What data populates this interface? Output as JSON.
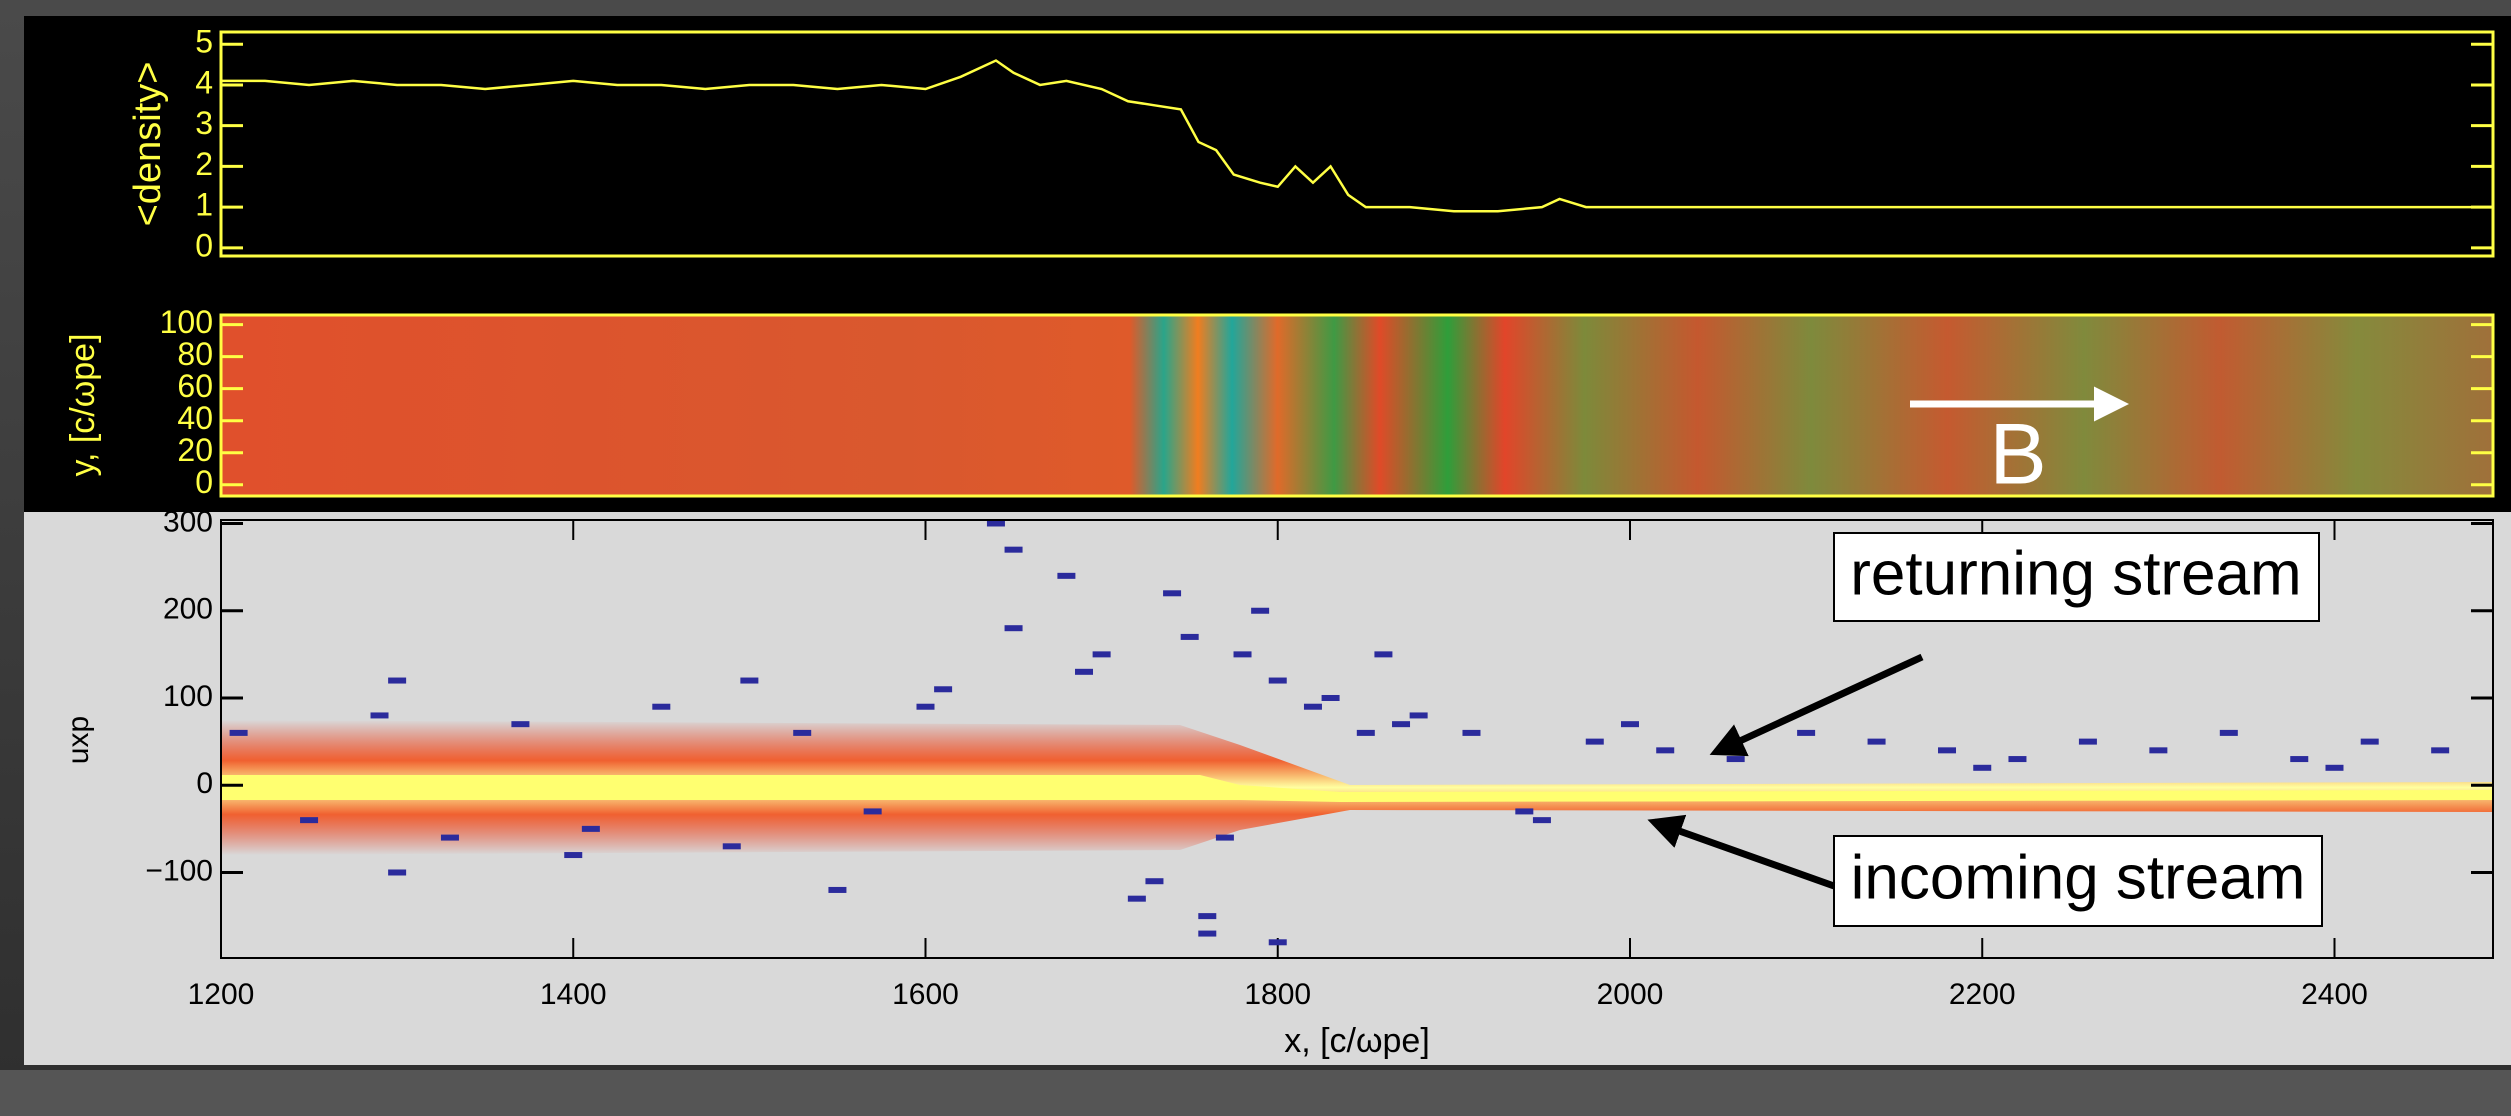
{
  "chart_data": [
    {
      "type": "line",
      "ylabel": "<density>",
      "color": "#ffff44",
      "xlim": [
        1200,
        2490
      ],
      "ylim": [
        -0.2,
        5.3
      ],
      "yticks": [
        0,
        1,
        2,
        3,
        4,
        5
      ],
      "x": [
        1200,
        1225,
        1250,
        1275,
        1300,
        1325,
        1350,
        1375,
        1400,
        1425,
        1450,
        1475,
        1500,
        1525,
        1550,
        1575,
        1600,
        1620,
        1640,
        1650,
        1665,
        1680,
        1700,
        1715,
        1730,
        1745,
        1755,
        1765,
        1775,
        1790,
        1800,
        1810,
        1820,
        1830,
        1840,
        1850,
        1875,
        1900,
        1925,
        1950,
        1960,
        1975,
        2000,
        2050,
        2100,
        2150,
        2200,
        2250,
        2300,
        2350,
        2400,
        2450,
        2490
      ],
      "values": [
        4.1,
        4.1,
        4.0,
        4.1,
        4.0,
        4.0,
        3.9,
        4.0,
        4.1,
        4.0,
        4.0,
        3.9,
        4.0,
        4.0,
        3.9,
        4.0,
        3.9,
        4.2,
        4.6,
        4.3,
        4.0,
        4.1,
        3.9,
        3.6,
        3.5,
        3.4,
        2.6,
        2.4,
        1.8,
        1.6,
        1.5,
        2.0,
        1.6,
        2.0,
        1.3,
        1.0,
        1.0,
        0.9,
        0.9,
        1.0,
        1.2,
        1.0,
        1.0,
        1.0,
        1.0,
        1.0,
        1.0,
        1.0,
        1.0,
        1.0,
        1.0,
        1.0,
        1.0
      ]
    },
    {
      "type": "heatmap",
      "ylabel": "y, [c/ωpe]",
      "annotation": "B",
      "xlim": [
        1200,
        2490
      ],
      "ylim": [
        -7,
        106
      ],
      "yticks": [
        0,
        20,
        40,
        60,
        80,
        100
      ]
    },
    {
      "type": "scatter",
      "ylabel": "uxp",
      "xlabel": "x, [c/ωpe]",
      "color": "#2b2b9c",
      "annotations": [
        "returning stream",
        "incoming stream"
      ],
      "xlim": [
        1200,
        2490
      ],
      "ylim": [
        -198,
        304
      ],
      "xticks": [
        1200,
        1400,
        1600,
        1800,
        2000,
        2200,
        2400
      ],
      "yticks": [
        {
          "value": -100,
          "label": "−100"
        },
        0,
        100,
        200,
        300
      ],
      "x": [
        1210,
        1250,
        1290,
        1330,
        1370,
        1410,
        1450,
        1490,
        1530,
        1570,
        1610,
        1650,
        1690,
        1730,
        1760,
        1780,
        1800,
        1820,
        1850,
        1880,
        1910,
        1940,
        1980,
        2020,
        2060,
        2100,
        2140,
        2180,
        2220,
        2260,
        2300,
        2340,
        2380,
        2420,
        2460,
        1300,
        1400,
        1500,
        1600,
        1650,
        1700,
        1740,
        1760,
        1790,
        1830,
        1870,
        1950,
        1640,
        1720,
        1800,
        1860,
        1750,
        1300,
        1550,
        2000,
        2200,
        2400,
        1680,
        1770
      ],
      "y": [
        60,
        -40,
        80,
        -60,
        70,
        -50,
        90,
        -70,
        60,
        -30,
        110,
        180,
        130,
        -110,
        -150,
        150,
        120,
        90,
        60,
        80,
        60,
        -30,
        50,
        40,
        30,
        60,
        50,
        40,
        30,
        50,
        40,
        60,
        30,
        50,
        40,
        -100,
        -80,
        120,
        90,
        270,
        150,
        220,
        -170,
        200,
        100,
        70,
        -40,
        300,
        -130,
        -180,
        150,
        170,
        120,
        -120,
        70,
        20,
        20,
        240,
        -60
      ]
    }
  ]
}
